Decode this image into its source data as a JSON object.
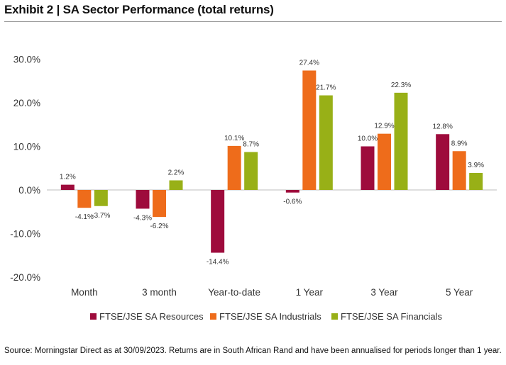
{
  "header": {
    "title": "Exhibit 2 | SA Sector Performance (total returns)"
  },
  "footer": {
    "source": "Source: Morningstar Direct as at 30/09/2023. Returns are in South African Rand and have been annualised for periods longer than 1 year."
  },
  "chart_data": {
    "type": "bar",
    "title": "Exhibit 2 | SA Sector Performance (total returns)",
    "xlabel": "",
    "ylabel": "",
    "ylim": [
      -20,
      30
    ],
    "yticks": [
      30,
      20,
      10,
      0,
      -10,
      -20
    ],
    "ytick_labels": [
      "30.0%",
      "20.0%",
      "10.0%",
      "0.0%",
      "-10.0%",
      "-20.0%"
    ],
    "categories": [
      "Month",
      "3 month",
      "Year-to-date",
      "1 Year",
      "3 Year",
      "5 Year"
    ],
    "grid": false,
    "legend_position": "bottom",
    "series": [
      {
        "name": "FTSE/JSE SA Resources",
        "color": "#9e0b3c",
        "values": [
          1.2,
          -4.3,
          -14.4,
          -0.6,
          10.0,
          12.8
        ],
        "labels": [
          "1.2%",
          "-4.3%",
          "-14.4%",
          "-0.6%",
          "10.0%",
          "12.8%"
        ]
      },
      {
        "name": "FTSE/JSE SA Industrials",
        "color": "#ee6c1b",
        "values": [
          -4.1,
          -6.2,
          10.1,
          27.4,
          12.9,
          8.9
        ],
        "labels": [
          "-4.1%",
          "-6.2%",
          "10.1%",
          "27.4%",
          "12.9%",
          "8.9%"
        ]
      },
      {
        "name": "FTSE/JSE SA Financials",
        "color": "#98b017",
        "values": [
          -3.7,
          2.2,
          8.7,
          21.7,
          22.3,
          3.9
        ],
        "labels": [
          "-3.7%",
          "2.2%",
          "8.7%",
          "21.7%",
          "22.3%",
          "3.9%"
        ]
      }
    ]
  }
}
